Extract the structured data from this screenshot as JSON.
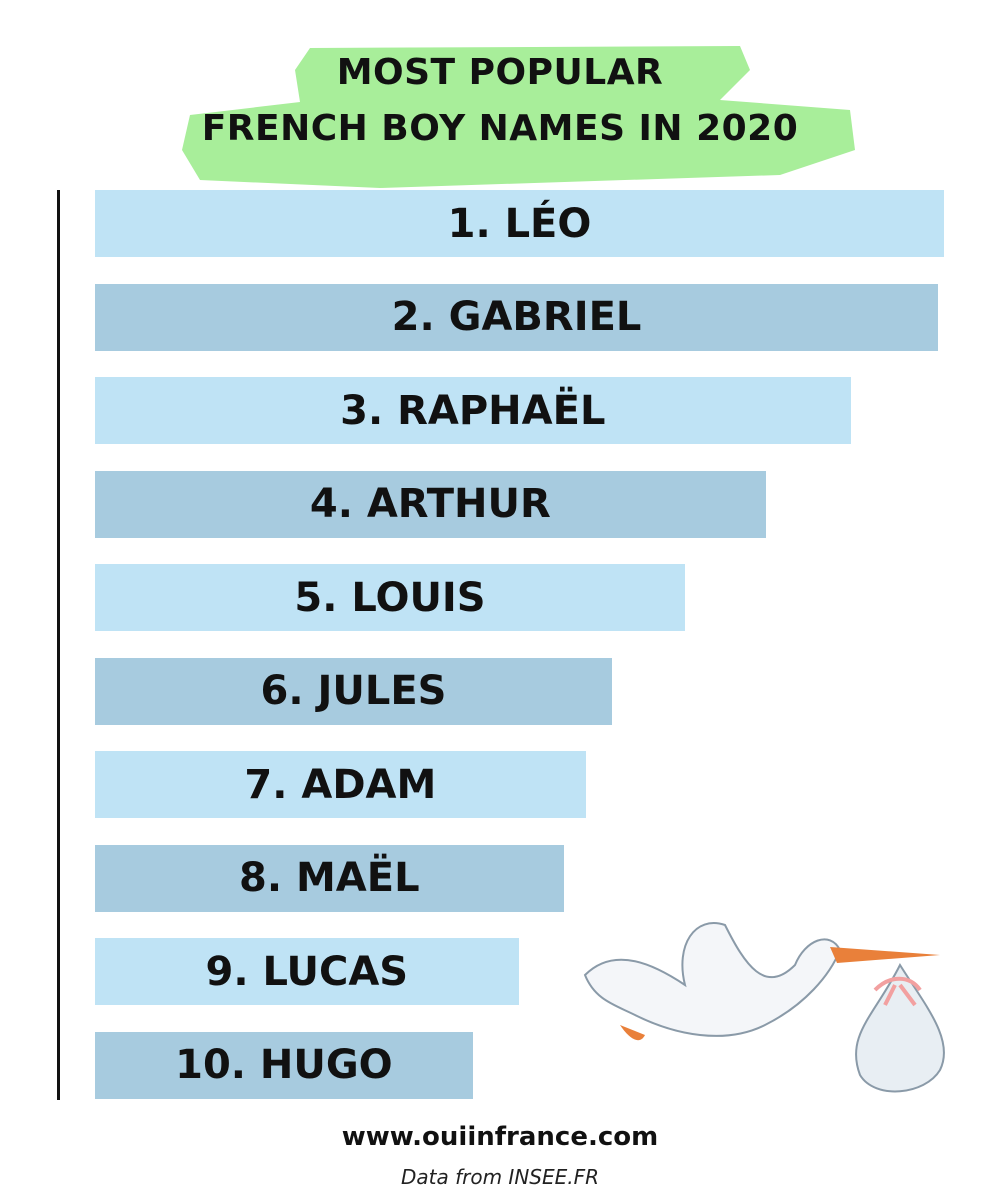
{
  "colors": {
    "highlight": "#a8ee9a",
    "bar_light": "#bfe3f5",
    "bar_dark": "#a7cbdf",
    "text": "#111111"
  },
  "chart_data": {
    "type": "bar",
    "orientation": "horizontal",
    "title_line1": "MOST POPULAR",
    "title_line2": "FRENCH BOY NAMES IN 2020",
    "categories": [
      "1. LÉO",
      "2. GABRIEL",
      "3. RAPHAËL",
      "4. ARTHUR",
      "5. LOUIS",
      "6. JULES",
      "7. ADAM",
      "8. MAËL",
      "9. LUCAS",
      "10. HUGO"
    ],
    "values": [
      100,
      99.3,
      89,
      79,
      69.5,
      60.9,
      57.8,
      55.2,
      49.9,
      44.5
    ],
    "value_unit": "relative (bar length, unlabeled)",
    "grid": false,
    "legend": "none"
  },
  "footer": {
    "website": "www.ouiinfrance.com",
    "source": "Data from INSEE.FR"
  },
  "illustration": {
    "icon": "stork-carrying-baby-bundle-icon"
  }
}
